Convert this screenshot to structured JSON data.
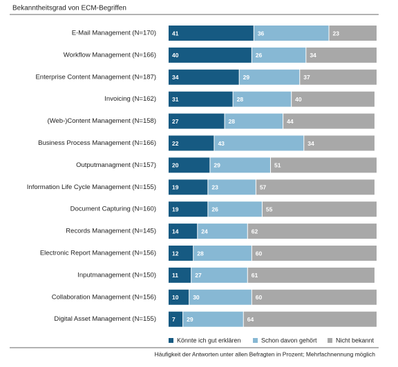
{
  "chart_data": {
    "type": "stacked-bar-horizontal",
    "title": "Bekanntheitsgrad von ECM-Begriffen",
    "footnote": "Häufigkeit der Antworten unter allen Befragten in Prozent; Mehrfachnennung möglich",
    "xlim": [
      0,
      100
    ],
    "categories": [
      "E-Mail Management (N=170)",
      "Workflow Management (N=166)",
      "Enterprise Content Management (N=187)",
      "Invoicing (N=162)",
      "(Web-)Content Management (N=158)",
      "Business Process Management (N=166)",
      "Outputmanagment (N=157)",
      "Information Life Cycle Management (N=155)",
      "Document Capturing (N=160)",
      "Records Management (N=145)",
      "Electronic Report Management (N=156)",
      "Inputmanagement (N=150)",
      "Collaboration Management (N=156)",
      "Digital Asset Management (N=155)"
    ],
    "series": [
      {
        "name": "Könnte ich gut erklären",
        "color": "#165a82",
        "values": [
          41,
          40,
          34,
          31,
          27,
          22,
          20,
          19,
          19,
          14,
          12,
          11,
          10,
          7
        ]
      },
      {
        "name": "Schon davon gehört",
        "color": "#87b8d4",
        "values": [
          36,
          26,
          29,
          28,
          28,
          43,
          29,
          23,
          26,
          24,
          28,
          27,
          30,
          29
        ]
      },
      {
        "name": "Nicht bekannt",
        "color": "#a8a8a8",
        "values": [
          23,
          34,
          37,
          40,
          44,
          34,
          51,
          57,
          55,
          62,
          60,
          61,
          60,
          64
        ]
      }
    ]
  }
}
